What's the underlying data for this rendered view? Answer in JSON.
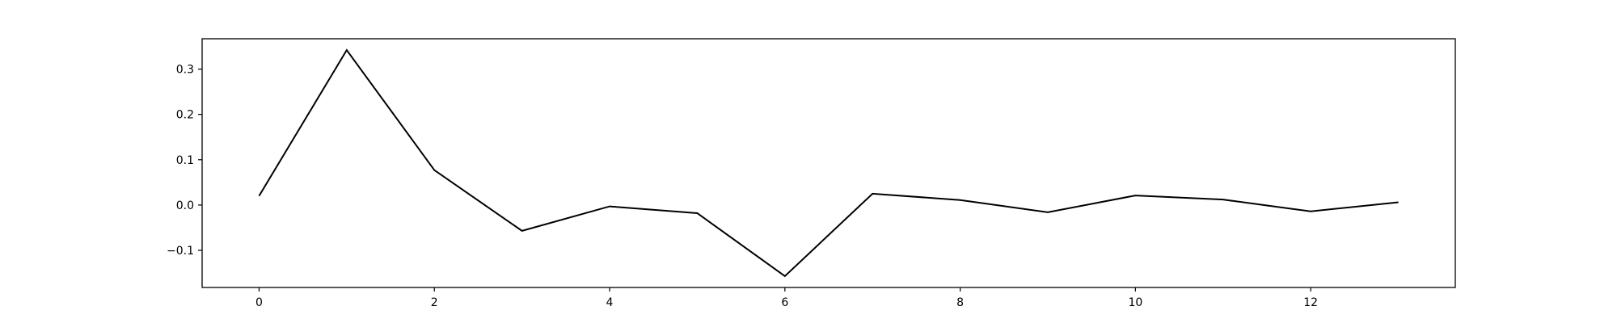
{
  "chart_data": {
    "type": "line",
    "title": "",
    "xlabel": "",
    "ylabel": "",
    "x": [
      0,
      1,
      2,
      3,
      4,
      5,
      6,
      7,
      8,
      9,
      10,
      11,
      12,
      13
    ],
    "series": [
      {
        "values": [
          0.02,
          0.342,
          0.077,
          -0.057,
          -0.003,
          -0.018,
          -0.157,
          0.025,
          0.011,
          -0.016,
          0.021,
          0.012,
          -0.014,
          0.006
        ],
        "color": "#000000"
      }
    ],
    "xlim": [
      -0.65,
      13.65
    ],
    "ylim": [
      -0.182,
      0.367
    ],
    "xticks": [
      0,
      2,
      4,
      6,
      8,
      10,
      12
    ],
    "xtick_labels": [
      "0",
      "2",
      "4",
      "6",
      "8",
      "10",
      "12"
    ],
    "yticks": [
      -0.1,
      0.0,
      0.1,
      0.2,
      0.3
    ],
    "ytick_labels": [
      "−0.1",
      "0.0",
      "0.1",
      "0.2",
      "0.3"
    ],
    "grid": false,
    "legend": "none"
  }
}
